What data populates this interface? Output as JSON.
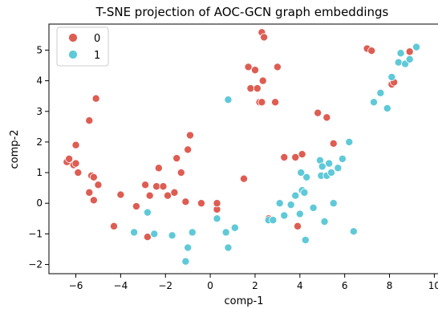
{
  "chart_data": {
    "type": "scatter",
    "title": "T-SNE projection of AOC-GCN graph embeddings",
    "xlabel": "comp-1",
    "ylabel": "comp-2",
    "xlim": [
      -7.2,
      10.2
    ],
    "ylim": [
      -2.3,
      5.85
    ],
    "xticks": [
      -6,
      -4,
      -2,
      0,
      2,
      4,
      6,
      8,
      10
    ],
    "yticks": [
      -2,
      -1,
      0,
      1,
      2,
      3,
      4,
      5
    ],
    "grid": false,
    "legend_position": "top-left",
    "series": [
      {
        "name": "0",
        "color": "#de5d53",
        "points": [
          [
            -6.4,
            1.35
          ],
          [
            -6.3,
            1.45
          ],
          [
            -6.0,
            1.9
          ],
          [
            -6.1,
            1.25
          ],
          [
            -6.0,
            1.3
          ],
          [
            -5.9,
            1.0
          ],
          [
            -5.4,
            2.7
          ],
          [
            -5.1,
            3.42
          ],
          [
            -5.3,
            0.9
          ],
          [
            -5.2,
            0.85
          ],
          [
            -5.0,
            0.6
          ],
          [
            -5.4,
            0.35
          ],
          [
            -5.2,
            0.1
          ],
          [
            -4.3,
            -0.75
          ],
          [
            -4.0,
            0.28
          ],
          [
            -3.3,
            -0.1
          ],
          [
            -2.9,
            0.6
          ],
          [
            -2.7,
            0.25
          ],
          [
            -2.8,
            -1.1
          ],
          [
            -2.3,
            1.15
          ],
          [
            -2.4,
            0.55
          ],
          [
            -2.1,
            0.55
          ],
          [
            -1.9,
            0.25
          ],
          [
            -1.6,
            0.35
          ],
          [
            -1.5,
            1.47
          ],
          [
            -1.3,
            1.0
          ],
          [
            -1.1,
            0.05
          ],
          [
            -1.0,
            1.75
          ],
          [
            -0.9,
            2.22
          ],
          [
            -0.4,
            0.0
          ],
          [
            0.3,
            -0.2
          ],
          [
            0.3,
            0.0
          ],
          [
            1.5,
            0.8
          ],
          [
            1.7,
            4.45
          ],
          [
            1.8,
            3.75
          ],
          [
            2.0,
            4.35
          ],
          [
            2.1,
            3.75
          ],
          [
            2.2,
            3.3
          ],
          [
            2.3,
            3.3
          ],
          [
            2.35,
            4.0
          ],
          [
            2.3,
            5.58
          ],
          [
            2.4,
            5.42
          ],
          [
            2.6,
            -0.5
          ],
          [
            2.9,
            3.3
          ],
          [
            3.0,
            4.45
          ],
          [
            3.3,
            1.5
          ],
          [
            3.8,
            1.5
          ],
          [
            3.9,
            -0.75
          ],
          [
            4.1,
            1.6
          ],
          [
            4.8,
            2.95
          ],
          [
            5.2,
            2.8
          ],
          [
            5.5,
            1.95
          ],
          [
            7.0,
            5.05
          ],
          [
            7.2,
            4.98
          ],
          [
            8.1,
            3.88
          ],
          [
            8.2,
            3.95
          ],
          [
            8.9,
            4.95
          ]
        ]
      },
      {
        "name": "1",
        "color": "#5fc9d8",
        "points": [
          [
            -3.4,
            -0.95
          ],
          [
            -2.8,
            -0.3
          ],
          [
            -2.5,
            -1.0
          ],
          [
            -1.7,
            -1.05
          ],
          [
            -1.1,
            -1.9
          ],
          [
            -1.0,
            -1.45
          ],
          [
            -0.8,
            -0.95
          ],
          [
            0.3,
            -0.5
          ],
          [
            0.7,
            -0.95
          ],
          [
            0.8,
            -1.45
          ],
          [
            0.8,
            3.38
          ],
          [
            1.1,
            -0.8
          ],
          [
            2.6,
            -0.55
          ],
          [
            2.8,
            -0.55
          ],
          [
            3.1,
            0.0
          ],
          [
            3.3,
            -0.4
          ],
          [
            3.6,
            -0.05
          ],
          [
            3.8,
            0.25
          ],
          [
            4.0,
            -0.35
          ],
          [
            4.05,
            1.0
          ],
          [
            4.1,
            0.42
          ],
          [
            4.2,
            0.35
          ],
          [
            4.25,
            -1.2
          ],
          [
            4.3,
            0.85
          ],
          [
            4.6,
            -0.15
          ],
          [
            4.9,
            1.4
          ],
          [
            4.95,
            0.9
          ],
          [
            5.0,
            1.2
          ],
          [
            5.1,
            -0.6
          ],
          [
            5.2,
            0.9
          ],
          [
            5.3,
            1.3
          ],
          [
            5.4,
            1.0
          ],
          [
            5.5,
            0.0
          ],
          [
            5.7,
            1.15
          ],
          [
            5.9,
            1.45
          ],
          [
            6.2,
            2.0
          ],
          [
            6.4,
            -0.92
          ],
          [
            7.3,
            3.3
          ],
          [
            7.6,
            3.6
          ],
          [
            7.9,
            3.1
          ],
          [
            8.1,
            4.12
          ],
          [
            8.4,
            4.6
          ],
          [
            8.5,
            4.9
          ],
          [
            8.7,
            4.55
          ],
          [
            8.9,
            4.7
          ],
          [
            9.2,
            5.1
          ]
        ]
      }
    ]
  }
}
